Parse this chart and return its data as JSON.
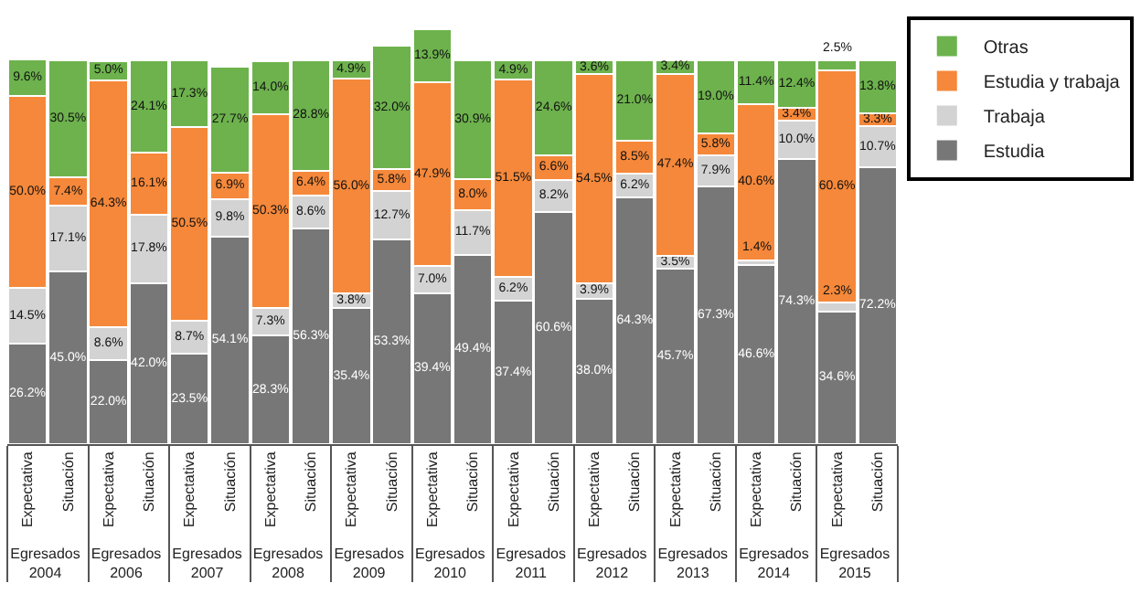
{
  "chart_data": {
    "type": "bar",
    "stacked": true,
    "tick_labels": "x",
    "legend": "right",
    "categories": [
      "Expectativa",
      "Situación",
      "Expectativa",
      "Situación",
      "Expectativa",
      "Situación",
      "Expectativa",
      "Situación",
      "Expectativa",
      "Situación",
      "Expectativa",
      "Situación",
      "Expectativa",
      "Situación",
      "Expectativa",
      "Situación",
      "Expectativa",
      "Situación",
      "Expectativa",
      "Situación",
      "Expectativa",
      "Situación"
    ],
    "annotations": [
      "Egresados 2004",
      "Egresados 2006",
      "Egresados 2007",
      "Egresados 2008",
      "Egresados 2009",
      "Egresados 2010",
      "Egresados 2011",
      "Egresados 2012",
      "Egresados 2013",
      "Egresados 2014",
      "Egresados 2015"
    ],
    "series": [
      {
        "name": "Estudia",
        "color": "#777777",
        "values": [
          26.2,
          45.0,
          22.0,
          42.0,
          23.5,
          54.1,
          28.3,
          56.3,
          35.4,
          53.3,
          39.4,
          49.4,
          37.4,
          60.6,
          38.0,
          64.3,
          45.7,
          67.3,
          46.6,
          74.3,
          34.6,
          72.2
        ],
        "value_labels": [
          "26.2%",
          "45.0%",
          "22.0%",
          "42.0%",
          "23.5%",
          "54.1%",
          "28.3%",
          "56.3%",
          "35.4%",
          "53.3%",
          "39.4%",
          "49.4%",
          "37.4%",
          "60.6%",
          "38.0%",
          "64.3%",
          "45.7%",
          "67.3%",
          "46.6%",
          "74.3%",
          "34.6%",
          "72.2%"
        ]
      },
      {
        "name": "Trabaja",
        "color": "#d3d3d3",
        "values": [
          14.5,
          17.1,
          8.6,
          17.8,
          8.7,
          9.8,
          7.3,
          8.6,
          3.8,
          12.7,
          7.0,
          11.7,
          6.2,
          8.2,
          3.9,
          6.2,
          3.5,
          7.9,
          1.4,
          10.0,
          2.3,
          10.7
        ],
        "value_labels": [
          "14.5%",
          "17.1%",
          "8.6%",
          "17.8%",
          "8.7%",
          "9.8%",
          "7.3%",
          "8.6%",
          "3.8%",
          "12.7%",
          "7.0%",
          "11.7%",
          "6.2%",
          "8.2%",
          "3.9%",
          "6.2%",
          "3.5%",
          "7.9%",
          "1.4%",
          "10.0%",
          "2.3%",
          "10.7%"
        ]
      },
      {
        "name": "Estudia y trabaja",
        "color": "#f5883a",
        "values": [
          50.0,
          7.4,
          64.3,
          16.1,
          50.5,
          6.9,
          50.3,
          6.4,
          56.0,
          5.8,
          47.9,
          8.0,
          51.5,
          6.6,
          54.5,
          8.5,
          47.4,
          5.8,
          40.6,
          3.4,
          60.6,
          3.3
        ],
        "value_labels": [
          "50.0%",
          "7.4%",
          "64.3%",
          "16.1%",
          "50.5%",
          "6.9%",
          "50.3%",
          "6.4%",
          "56.0%",
          "5.8%",
          "47.9%",
          "8.0%",
          "51.5%",
          "6.6%",
          "54.5%",
          "8.5%",
          "47.4%",
          "5.8%",
          "40.6%",
          "3.4%",
          "60.6%",
          "3.3%"
        ]
      },
      {
        "name": "Otras",
        "color": "#6db24d",
        "values": [
          9.6,
          30.5,
          5.0,
          24.1,
          17.3,
          27.7,
          14.0,
          28.8,
          4.9,
          32.0,
          13.9,
          30.9,
          4.9,
          24.6,
          3.6,
          21.0,
          3.4,
          19.0,
          11.4,
          12.4,
          2.5,
          13.8
        ],
        "value_labels": [
          "9.6%",
          "30.5%",
          "5.0%",
          "24.1%",
          "17.3%",
          "27.7%",
          "14.0%",
          "28.8%",
          "4.9%",
          "32.0%",
          "13.9%",
          "30.9%",
          "4.9%",
          "24.6%",
          "3.6%",
          "21.0%",
          "3.4%",
          "19.0%",
          "11.4%",
          "12.4%",
          "2.5%",
          "13.8%"
        ]
      }
    ]
  }
}
